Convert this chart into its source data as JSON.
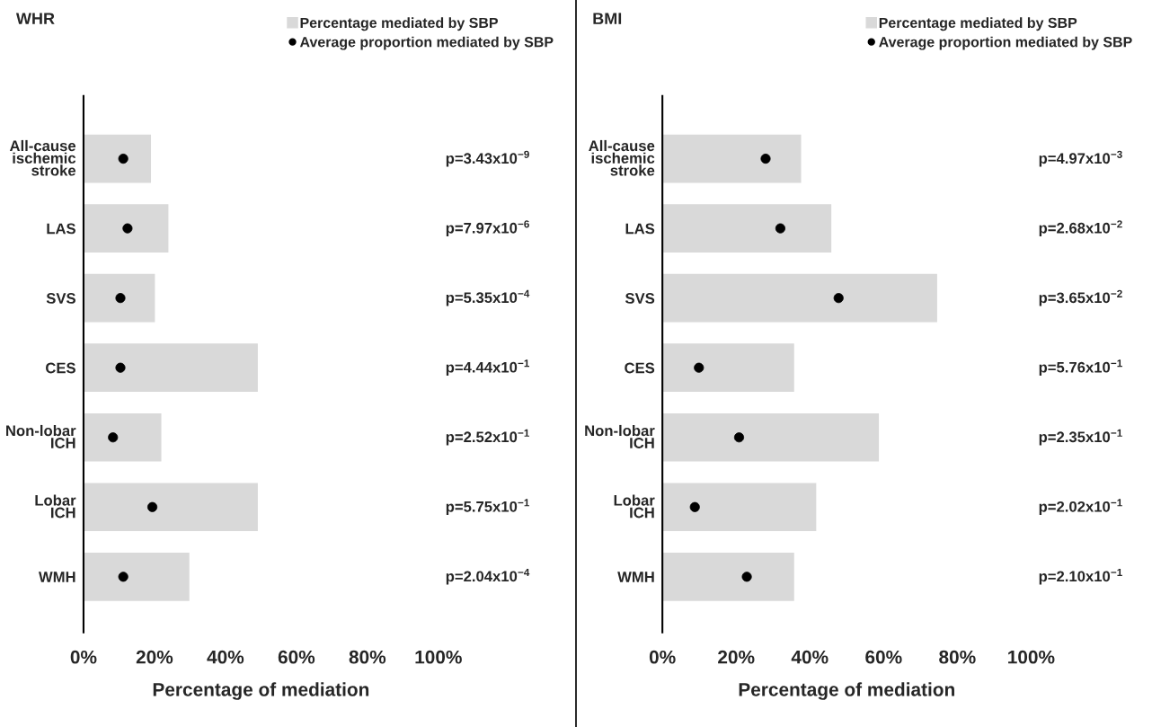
{
  "chart_data": [
    {
      "type": "bar",
      "orientation": "horizontal",
      "title": "WHR",
      "xlabel": "Percentage of mediation",
      "legend": "top right",
      "grid": false,
      "categories": [
        "All-cause\nischemic\nstroke",
        "LAS",
        "SVS",
        "CES",
        "Non-lobar\nICH",
        "Lobar\nICH",
        "WMH"
      ],
      "xlim": [
        0,
        100
      ],
      "xticks": [
        {
          "value": 0,
          "label": "0%"
        },
        {
          "value": 20,
          "label": "20%"
        },
        {
          "value": 40,
          "label": "40%"
        },
        {
          "value": 60,
          "label": "60%"
        },
        {
          "value": 80,
          "label": "80%"
        },
        {
          "value": 100,
          "label": "100%"
        }
      ],
      "series": [
        {
          "name": "Percentage mediated by SBP",
          "color": "#d9d9d9",
          "values": [
            19.2,
            24.1,
            20.3,
            49.3,
            22.1,
            49.3,
            30.0
          ]
        },
        {
          "name": "Average proportion mediated by SBP",
          "type": "scatter",
          "marker": "circle",
          "color": "#000000",
          "values": [
            11.2,
            12.4,
            10.4,
            10.4,
            8.3,
            19.4,
            11.2
          ]
        }
      ],
      "annotations": [
        "p=3.43x10$^{−9}$",
        "p=7.97x10$^{−6}$",
        "p=5.35x10$^{−4}$",
        "p=4.44x10$^{−1}$",
        "p=2.52x10$^{−1}$",
        "p=5.75x10$^{−1}$",
        "p=2.04x10$^{−4}$"
      ]
    },
    {
      "type": "bar",
      "orientation": "horizontal",
      "title": "BMI",
      "xlabel": "Percentage of mediation",
      "legend": "top right",
      "grid": false,
      "categories": [
        "All-cause\nischemic\nstroke",
        "LAS",
        "SVS",
        "CES",
        "Non-lobar\nICH",
        "Lobar\nICH",
        "WMH"
      ],
      "xlim": [
        0,
        100
      ],
      "xticks": [
        {
          "value": 0,
          "label": "0%"
        },
        {
          "value": 20,
          "label": "20%"
        },
        {
          "value": 40,
          "label": "40%"
        },
        {
          "value": 60,
          "label": "60%"
        },
        {
          "value": 80,
          "label": "80%"
        },
        {
          "value": 100,
          "label": "100%"
        }
      ],
      "series": [
        {
          "name": "Percentage mediated by SBP",
          "color": "#d9d9d9",
          "values": [
            37.8,
            46.0,
            74.7,
            35.9,
            58.9,
            41.9,
            35.9
          ]
        },
        {
          "name": "Average proportion mediated by SBP",
          "type": "scatter",
          "marker": "circle",
          "color": "#000000",
          "values": [
            28.0,
            32.0,
            47.8,
            9.9,
            20.8,
            8.8,
            22.9
          ]
        }
      ],
      "annotations": [
        "p=4.97x10$^{−3}$",
        "p=2.68x10$^{−2}$",
        "p=3.65x10$^{−2}$",
        "p=5.76x10$^{−1}$",
        "p=2.35x10$^{−1}$",
        "p=2.02x10$^{−1}$",
        "p=2.10x10$^{−1}$"
      ]
    }
  ]
}
